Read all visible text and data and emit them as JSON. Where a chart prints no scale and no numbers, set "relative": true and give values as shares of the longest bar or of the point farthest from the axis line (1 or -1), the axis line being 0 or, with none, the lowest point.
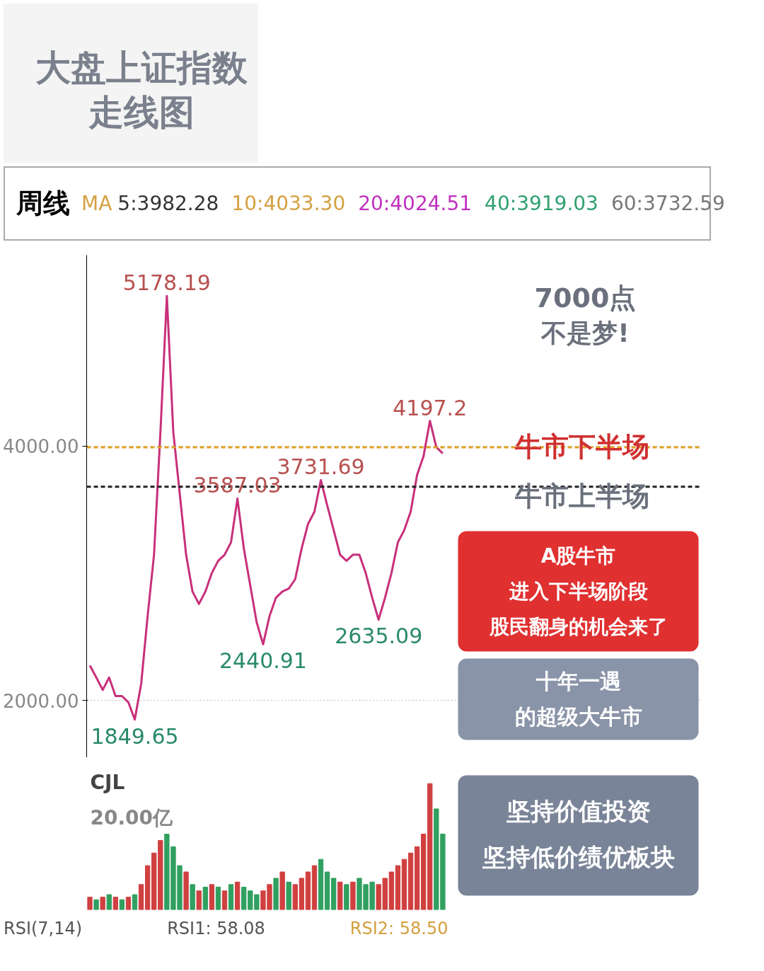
{
  "chart_data": [
    {
      "type": "line",
      "title": "大盘上证指数",
      "subtitle": "走线图",
      "categories": [
        null,
        null,
        null,
        null,
        null,
        null,
        null,
        null,
        null,
        null,
        null,
        null,
        null,
        null,
        null,
        null,
        null,
        null,
        null,
        null,
        null,
        null,
        null,
        null,
        null,
        null,
        null,
        null,
        null,
        null,
        null,
        null,
        null,
        null,
        null,
        null,
        null,
        null,
        null,
        null,
        null,
        null,
        null,
        null,
        null,
        null,
        null,
        null,
        null,
        null,
        null,
        null,
        null,
        null,
        null,
        null
      ],
      "series": [
        {
          "color": "#c8307a",
          "values": [
            2275,
            2180,
            2082,
            2180,
            2034,
            2034,
            1985,
            1849.65,
            2130,
            2662,
            3145,
            4111,
            5178.19,
            4111,
            3628,
            3145,
            2855,
            2758,
            2855,
            3000,
            3097,
            3145,
            3242,
            3587.03,
            3193,
            2903,
            2613,
            2440.91,
            2662,
            2807,
            2855,
            2879,
            2952,
            3193,
            3386,
            3483,
            3731.69,
            3531,
            3338,
            3145,
            3097,
            3145,
            3145,
            3000,
            2807,
            2635.09,
            2807,
            3000,
            3242,
            3338,
            3483,
            3773,
            3918,
            4197.2,
            3990,
            3942
          ],
          "value_labels": [
            null,
            null,
            null,
            null,
            null,
            null,
            null,
            "1849.65",
            null,
            null,
            null,
            null,
            "5178.19",
            null,
            null,
            null,
            null,
            null,
            null,
            null,
            null,
            null,
            null,
            "3587.03",
            null,
            null,
            null,
            "2440.91",
            null,
            null,
            null,
            null,
            null,
            null,
            null,
            null,
            "3731.69",
            null,
            null,
            null,
            null,
            null,
            null,
            null,
            null,
            "2635.09",
            null,
            null,
            null,
            null,
            null,
            null,
            null,
            "4197.2",
            null,
            null
          ]
        }
      ],
      "ylim": [
        1550,
        5500
      ],
      "yticks": [
        {
          "value": 2000,
          "label": "2000.00"
        },
        {
          "value": 4000,
          "label": "4000.00"
        }
      ],
      "grid": "y",
      "line_style": "solid",
      "marker": "none",
      "ref_lines": [
        {
          "axis": "y",
          "value": 3680,
          "color": "#222222",
          "line_style": "dashed"
        },
        {
          "axis": "y",
          "value": 3990,
          "color": "#e0a020",
          "line_style": "dashed"
        }
      ],
      "annotations": [
        "周线",
        "MA",
        "5:3982.28",
        "10:4033.30",
        "20:4024.51",
        "40:3919.03",
        "60:3732.59",
        "7000点",
        "不是梦!",
        "牛市下半场",
        "牛市上半场",
        "A股牛市",
        "进入下半场阶段",
        "股民翻身的机会来了",
        "十年一遇",
        "的超级大牛市"
      ]
    },
    {
      "type": "bar",
      "relative": true,
      "categories": [
        null,
        null,
        null,
        null,
        null,
        null,
        null,
        null,
        null,
        null,
        null,
        null,
        null,
        null,
        null,
        null,
        null,
        null,
        null,
        null,
        null,
        null,
        null,
        null,
        null,
        null,
        null,
        null,
        null,
        null,
        null,
        null,
        null,
        null,
        null,
        null,
        null,
        null,
        null,
        null,
        null,
        null,
        null,
        null,
        null,
        null,
        null,
        null,
        null,
        null,
        null,
        null,
        null,
        null,
        null,
        null
      ],
      "values": [
        0.1,
        0.08,
        0.1,
        0.12,
        0.1,
        0.08,
        0.1,
        0.12,
        0.2,
        0.35,
        0.45,
        0.55,
        0.6,
        0.5,
        0.35,
        0.3,
        0.2,
        0.15,
        0.18,
        0.2,
        0.18,
        0.15,
        0.2,
        0.22,
        0.18,
        0.15,
        0.12,
        0.15,
        0.2,
        0.25,
        0.3,
        0.22,
        0.2,
        0.25,
        0.3,
        0.35,
        0.4,
        0.3,
        0.25,
        0.22,
        0.2,
        0.22,
        0.25,
        0.2,
        0.22,
        0.2,
        0.25,
        0.3,
        0.35,
        0.4,
        0.45,
        0.5,
        0.6,
        1.0,
        0.8,
        0.6
      ],
      "colors": [
        "#d04040",
        "#30a060",
        "#d04040",
        "#30a060",
        "#d04040",
        "#30a060",
        "#d04040",
        "#30a060",
        "#d04040",
        "#d04040",
        "#d04040",
        "#d04040",
        "#30a060",
        "#30a060",
        "#30a060",
        "#d04040",
        "#30a060",
        "#d04040",
        "#30a060",
        "#d04040",
        "#30a060",
        "#d04040",
        "#30a060",
        "#d04040",
        "#30a060",
        "#30a060",
        "#30a060",
        "#d04040",
        "#d04040",
        "#30a060",
        "#d04040",
        "#30a060",
        "#d04040",
        "#d04040",
        "#d04040",
        "#d04040",
        "#30a060",
        "#30a060",
        "#30a060",
        "#d04040",
        "#30a060",
        "#d04040",
        "#30a060",
        "#30a060",
        "#30a060",
        "#d04040",
        "#d04040",
        "#d04040",
        "#d04040",
        "#d04040",
        "#d04040",
        "#d04040",
        "#d04040",
        "#d04040",
        "#30a060",
        "#30a060"
      ],
      "annotations": [
        "CJL",
        "20.00亿",
        "坚持价值投资",
        "坚持低价绩优板块",
        "RSI(7,14)",
        "RSI1: 58.08",
        "RSI2: 58.50"
      ]
    }
  ]
}
